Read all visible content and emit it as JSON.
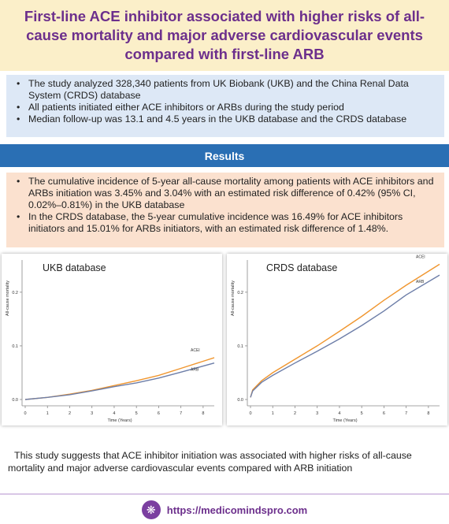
{
  "title": "First-line ACE inhibitor associated with higher risks of all-cause mortality and major adverse cardiovascular events compared with first-line ARB",
  "intro_bullets": [
    "The study analyzed 328,340 patients from UK Biobank (UKB) and the China Renal Data System (CRDS) database",
    "All patients initiated either ACE inhibitors or ARBs during the study period",
    "Median follow-up was 13.1 and 4.5 years in the UKB database and the CRDS database"
  ],
  "results_heading": "Results",
  "results_bullets": [
    "The cumulative incidence of 5-year all-cause mortality among patients with ACE inhibitors and ARBs initiation was 3.45% and 3.04% with an estimated risk difference of 0.42% (95% CI, 0.02%–0.81%) in the UKB database",
    "In the CRDS database, the 5-year cumulative incidence was 16.49% for ACE inhibitors initiators and 15.01% for ARBs initiators, with an estimated risk difference of 1.48%."
  ],
  "conclusion": "This study suggests that ACE inhibitor initiation was associated with higher risks of all-cause mortality and major adverse cardiovascular events compared with ARB initiation",
  "footer": {
    "url": "https://medicomindspro.com",
    "logo_icon": "brain-icon"
  },
  "colors": {
    "ace": "#f0962f",
    "arb": "#6d7ea8",
    "title": "#6c2f8c",
    "results_bar": "#2a6fb4"
  },
  "chart_data": [
    {
      "type": "line",
      "title": "UKB database",
      "xlabel": "Time (Years)",
      "ylabel": "All-cause mortality",
      "xlim": [
        0,
        8.5
      ],
      "ylim": [
        0,
        0.26
      ],
      "xticks": [
        "0",
        "1",
        "2",
        "3",
        "4",
        "5",
        "6",
        "7",
        "8"
      ],
      "yticks": [
        "0.0",
        "0.1",
        "0.2"
      ],
      "series": [
        {
          "name": "ACEI",
          "x": [
            0,
            1,
            2,
            3,
            4,
            5,
            6,
            7,
            8.5
          ],
          "y": [
            0,
            0.004,
            0.01,
            0.017,
            0.026,
            0.035,
            0.045,
            0.058,
            0.078
          ]
        },
        {
          "name": "ARB",
          "x": [
            0,
            1,
            2,
            3,
            4,
            5,
            6,
            7,
            8.5
          ],
          "y": [
            0,
            0.004,
            0.009,
            0.016,
            0.024,
            0.031,
            0.04,
            0.051,
            0.068
          ]
        }
      ]
    },
    {
      "type": "line",
      "title": "CRDS database",
      "xlabel": "Time (Years)",
      "ylabel": "All-cause mortality",
      "xlim": [
        0,
        8.5
      ],
      "ylim": [
        0,
        0.26
      ],
      "xticks": [
        "0",
        "1",
        "2",
        "3",
        "4",
        "5",
        "6",
        "7",
        "8"
      ],
      "yticks": [
        "0.0",
        "0.1",
        "0.2"
      ],
      "series": [
        {
          "name": "ACEI",
          "x": [
            0,
            0.1,
            0.5,
            1,
            2,
            3,
            4,
            5,
            6,
            7,
            8.5
          ],
          "y": [
            0.004,
            0.018,
            0.035,
            0.05,
            0.075,
            0.1,
            0.127,
            0.155,
            0.185,
            0.213,
            0.252
          ]
        },
        {
          "name": "ARB",
          "x": [
            0,
            0.1,
            0.5,
            1,
            2,
            3,
            4,
            5,
            6,
            7,
            8.5
          ],
          "y": [
            0.004,
            0.016,
            0.032,
            0.045,
            0.068,
            0.09,
            0.113,
            0.138,
            0.165,
            0.195,
            0.232
          ]
        }
      ]
    }
  ]
}
